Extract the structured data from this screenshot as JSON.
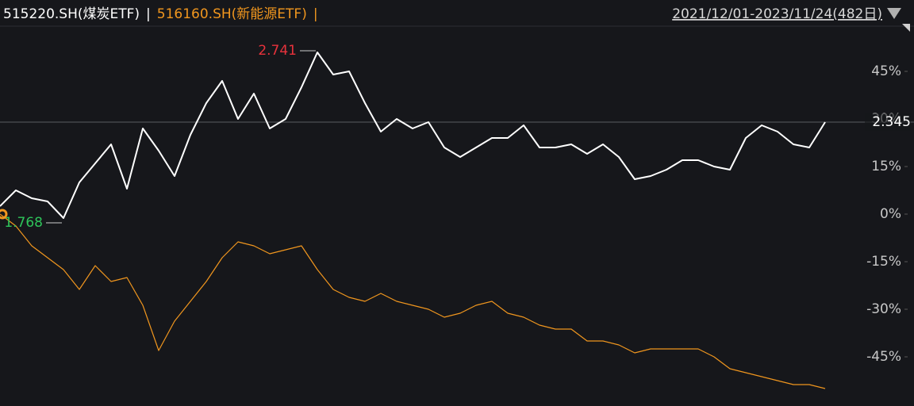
{
  "chart_data": {
    "type": "line",
    "separator": "|",
    "date_range": "2021/12/01-2023/11/24(482日)",
    "series": [
      {
        "name": "515220.SH(煤炭ETF)",
        "color": "#ffffff",
        "values": [
          2.5,
          7.5,
          5,
          4,
          -1.25,
          10,
          16,
          22,
          8,
          27,
          20,
          12,
          25,
          35,
          42,
          30,
          38,
          27,
          30,
          40,
          51,
          44,
          45,
          35,
          26,
          30,
          27,
          29,
          21,
          18,
          21,
          24,
          24,
          28,
          21,
          21,
          22,
          19,
          22,
          18,
          11,
          12,
          14,
          17,
          17,
          15,
          14,
          24,
          28,
          26,
          22,
          21,
          29
        ]
      },
      {
        "name": "516160.SH(新能源ETF)",
        "color": "#f0961e",
        "values": [
          0,
          -3.75,
          -10,
          -13.75,
          -17.5,
          -23.75,
          -16.25,
          -21.25,
          -20,
          -28.75,
          -43,
          -33.75,
          -27.5,
          -21.25,
          -13.75,
          -8.75,
          -10,
          -12.5,
          -11.25,
          -10,
          -17.5,
          -23.75,
          -26.25,
          -27.5,
          -25,
          -27.5,
          -28.75,
          -30,
          -32.5,
          -31.25,
          -28.75,
          -27.5,
          -31.25,
          -32.5,
          -35,
          -36.25,
          -36.25,
          -40,
          -40,
          -41.25,
          -43.75,
          -42.5,
          -42.5,
          -42.5,
          -42.5,
          -45,
          -48.75,
          -50,
          -51.25,
          -52.5,
          -53.75,
          -53.75,
          -55
        ]
      }
    ],
    "annotations": [
      {
        "text": "2.741",
        "color": "#e8323c"
      },
      {
        "text": "1.768",
        "color": "#2ec45a"
      },
      {
        "text": "2.345",
        "color": "#ffffff"
      }
    ],
    "ylim": [
      -60,
      60
    ],
    "yticks": [
      {
        "value": 45,
        "label": "45%"
      },
      {
        "value": 30,
        "label": "30%"
      },
      {
        "value": 15,
        "label": "15%"
      },
      {
        "value": 0,
        "label": "0%"
      },
      {
        "value": -15,
        "label": "-15%"
      },
      {
        "value": -30,
        "label": "-30%"
      },
      {
        "value": -45,
        "label": "-45%"
      }
    ],
    "grid": false
  }
}
